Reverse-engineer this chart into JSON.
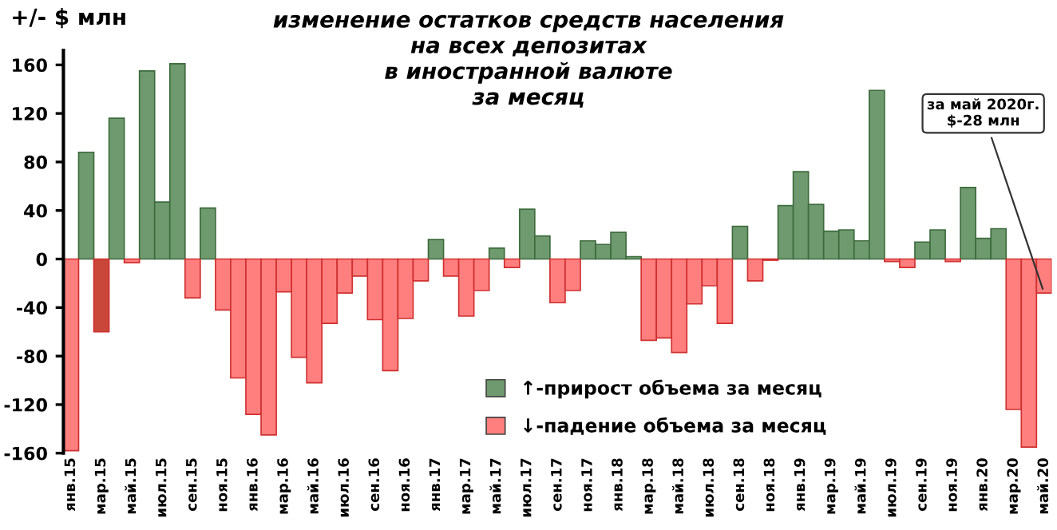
{
  "chart_data": {
    "type": "bar",
    "title": "изменение остатков средств населения\nна всех депозитах\nв иностранной валюте\nза месяц",
    "ylabel": "+/- $ млн",
    "categories": [
      "янв.15",
      null,
      "мар.15",
      null,
      "май.15",
      null,
      "июл.15",
      null,
      "сен.15",
      null,
      "ноя.15",
      null,
      "янв.16",
      null,
      "мар.16",
      null,
      "май.16",
      null,
      "июл.16",
      null,
      "сен.16",
      null,
      "ноя.16",
      null,
      "янв.17",
      null,
      "мар.17",
      null,
      "май.17",
      null,
      "июл.17",
      null,
      "сен.17",
      null,
      "ноя.17",
      null,
      "янв.18",
      null,
      "мар.18",
      null,
      "май.18",
      null,
      "июл.18",
      null,
      "сен.18",
      null,
      "ноя.18",
      null,
      "янв.19",
      null,
      "мар.19",
      null,
      "май.19",
      null,
      "июл.19",
      null,
      "сен.19",
      null,
      "ноя.19",
      null,
      "янв.20",
      null,
      "мар.20",
      null,
      "май.20"
    ],
    "series": [
      {
        "name": "↑-прирост объема за месяц",
        "color": "#6f9a6f",
        "values": [
          null,
          88,
          null,
          116,
          null,
          155,
          47,
          161,
          null,
          42,
          null,
          null,
          null,
          null,
          null,
          null,
          null,
          null,
          null,
          null,
          null,
          null,
          null,
          null,
          16,
          null,
          null,
          null,
          9,
          null,
          41,
          19,
          null,
          null,
          15,
          12,
          22,
          2,
          null,
          null,
          null,
          null,
          null,
          null,
          27,
          null,
          null,
          44,
          72,
          45,
          23,
          24,
          15,
          139,
          null,
          null,
          14,
          24,
          null,
          59,
          17,
          25,
          null,
          null,
          null
        ]
      },
      {
        "name": "↓-падение объема за месяц",
        "color": "#ff7f7f",
        "colors": [
          "#ff7f7f",
          "#ff7f7f",
          "#c8473a",
          "#ff7f7f",
          "#ff7f7f",
          "#ff7f7f",
          "#ff7f7f",
          "#ff7f7f",
          "#ff7f7f",
          "#ff7f7f",
          "#ff7f7f",
          "#ff7f7f",
          "#ff7f7f",
          "#ff7f7f",
          "#ff7f7f",
          "#ff7f7f",
          "#ff7f7f",
          "#ff7f7f",
          "#ff7f7f",
          "#ff7f7f",
          "#ff7f7f",
          "#ff7f7f",
          "#ff7f7f",
          "#ff7f7f",
          "#ff7f7f",
          "#ff7f7f",
          "#ff7f7f",
          "#ff7f7f",
          "#ff7f7f",
          "#ff7f7f",
          "#ff7f7f",
          "#ff7f7f",
          "#ff7f7f",
          "#ff7f7f",
          "#ff7f7f",
          "#ff7f7f",
          "#ff7f7f",
          "#ff7f7f",
          "#ff7f7f",
          "#ff7f7f",
          "#ff7f7f",
          "#ff7f7f",
          "#ff7f7f",
          "#ff7f7f",
          "#ff7f7f",
          "#ff7f7f",
          "#ff7f7f",
          "#ff7f7f",
          "#ff7f7f",
          "#ff7f7f",
          "#ff7f7f",
          "#ff7f7f",
          "#ff7f7f",
          "#ff7f7f",
          "#ff7f7f",
          "#ff7f7f",
          "#ff7f7f",
          "#ff7f7f",
          "#ff7f7f",
          "#ff7f7f",
          "#ff7f7f",
          "#ff7f7f",
          "#ff7f7f",
          "#ff7f7f",
          "#ff7f7f"
        ],
        "values": [
          -158,
          null,
          -60,
          null,
          -3,
          null,
          null,
          null,
          -32,
          null,
          -42,
          -98,
          -128,
          -145,
          -27,
          -81,
          -102,
          -53,
          -28,
          -14,
          -50,
          -92,
          -49,
          -18,
          null,
          -14,
          -47,
          -26,
          null,
          -7,
          null,
          null,
          -36,
          -26,
          null,
          null,
          null,
          null,
          -67,
          -65,
          -77,
          -37,
          -22,
          -53,
          null,
          -18,
          -1,
          null,
          null,
          null,
          null,
          null,
          null,
          null,
          -2,
          -7,
          null,
          null,
          -2,
          null,
          null,
          null,
          -124,
          -155,
          -28
        ]
      }
    ],
    "ylim": [
      -160,
      172
    ],
    "yticks": [
      -160,
      -120,
      -80,
      -40,
      0,
      40,
      80,
      120,
      160
    ],
    "grid": false,
    "legend": "bottom",
    "annotations": [
      {
        "text": "за май 2020г.\n$-28 млн",
        "x": "май.20",
        "y": -28
      }
    ]
  }
}
